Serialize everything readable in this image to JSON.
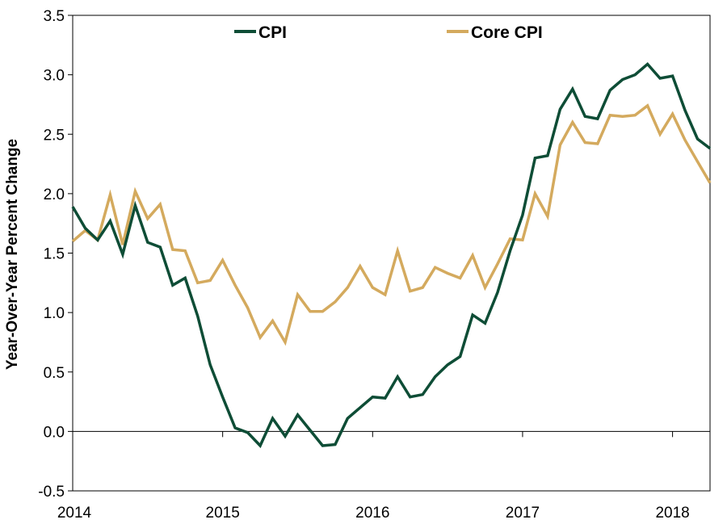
{
  "chart_data": {
    "type": "line",
    "title": "",
    "xlabel": "",
    "ylabel": "Year-Over-Year  Percent Change",
    "ylim": [
      -0.5,
      3.5
    ],
    "yticks": [
      "-0.5",
      "0.0",
      "0.5",
      "1.0",
      "1.5",
      "2.0",
      "2.5",
      "3.0",
      "3.5"
    ],
    "xticks": [
      "2014",
      "2015",
      "2016",
      "2017",
      "2018"
    ],
    "xlim": [
      2014.0,
      2018.25
    ],
    "grid": false,
    "legend_position": "top",
    "x": [
      2014.0,
      2014.0833,
      2014.1667,
      2014.25,
      2014.3333,
      2014.4167,
      2014.5,
      2014.5833,
      2014.6667,
      2014.75,
      2014.8333,
      2014.9167,
      2015.0,
      2015.0833,
      2015.1667,
      2015.25,
      2015.3333,
      2015.4167,
      2015.5,
      2015.5833,
      2015.6667,
      2015.75,
      2015.8333,
      2015.9167,
      2016.0,
      2016.0833,
      2016.1667,
      2016.25,
      2016.3333,
      2016.4167,
      2016.5,
      2016.5833,
      2016.6667,
      2016.75,
      2016.8333,
      2016.9167,
      2017.0,
      2017.0833,
      2017.1667,
      2017.25,
      2017.3333,
      2017.4167,
      2017.5,
      2017.5833,
      2017.6667,
      2017.75,
      2017.8333,
      2017.9167,
      2018.0,
      2018.0833,
      2018.1667,
      2018.25
    ],
    "series": [
      {
        "name": "CPI",
        "color": "#0e4d36",
        "values": [
          1.89,
          1.71,
          1.61,
          1.77,
          1.49,
          1.9,
          1.59,
          1.55,
          1.23,
          1.29,
          0.97,
          0.56,
          0.29,
          0.03,
          -0.01,
          -0.12,
          0.11,
          -0.04,
          0.14,
          0.01,
          -0.12,
          -0.11,
          0.11,
          0.2,
          0.29,
          0.28,
          0.46,
          0.29,
          0.31,
          0.46,
          0.56,
          0.63,
          0.98,
          0.91,
          1.17,
          1.52,
          1.82,
          2.3,
          2.32,
          2.71,
          2.88,
          2.65,
          2.63,
          2.87,
          2.96,
          3.0,
          3.09,
          2.97,
          2.99,
          2.7,
          2.46,
          2.38
        ]
      },
      {
        "name": "Core CPI",
        "color": "#d4aa5e",
        "values": [
          1.6,
          1.69,
          1.61,
          1.99,
          1.57,
          2.02,
          1.79,
          1.91,
          1.53,
          1.52,
          1.25,
          1.27,
          1.44,
          1.23,
          1.04,
          0.79,
          0.93,
          0.75,
          1.15,
          1.01,
          1.01,
          1.09,
          1.21,
          1.39,
          1.21,
          1.15,
          1.52,
          1.18,
          1.21,
          1.38,
          1.33,
          1.29,
          1.48,
          1.21,
          1.41,
          1.62,
          1.61,
          2.0,
          1.81,
          2.41,
          2.6,
          2.43,
          2.42,
          2.66,
          2.65,
          2.66,
          2.74,
          2.5,
          2.67,
          2.45,
          2.27,
          2.09
        ]
      }
    ]
  }
}
